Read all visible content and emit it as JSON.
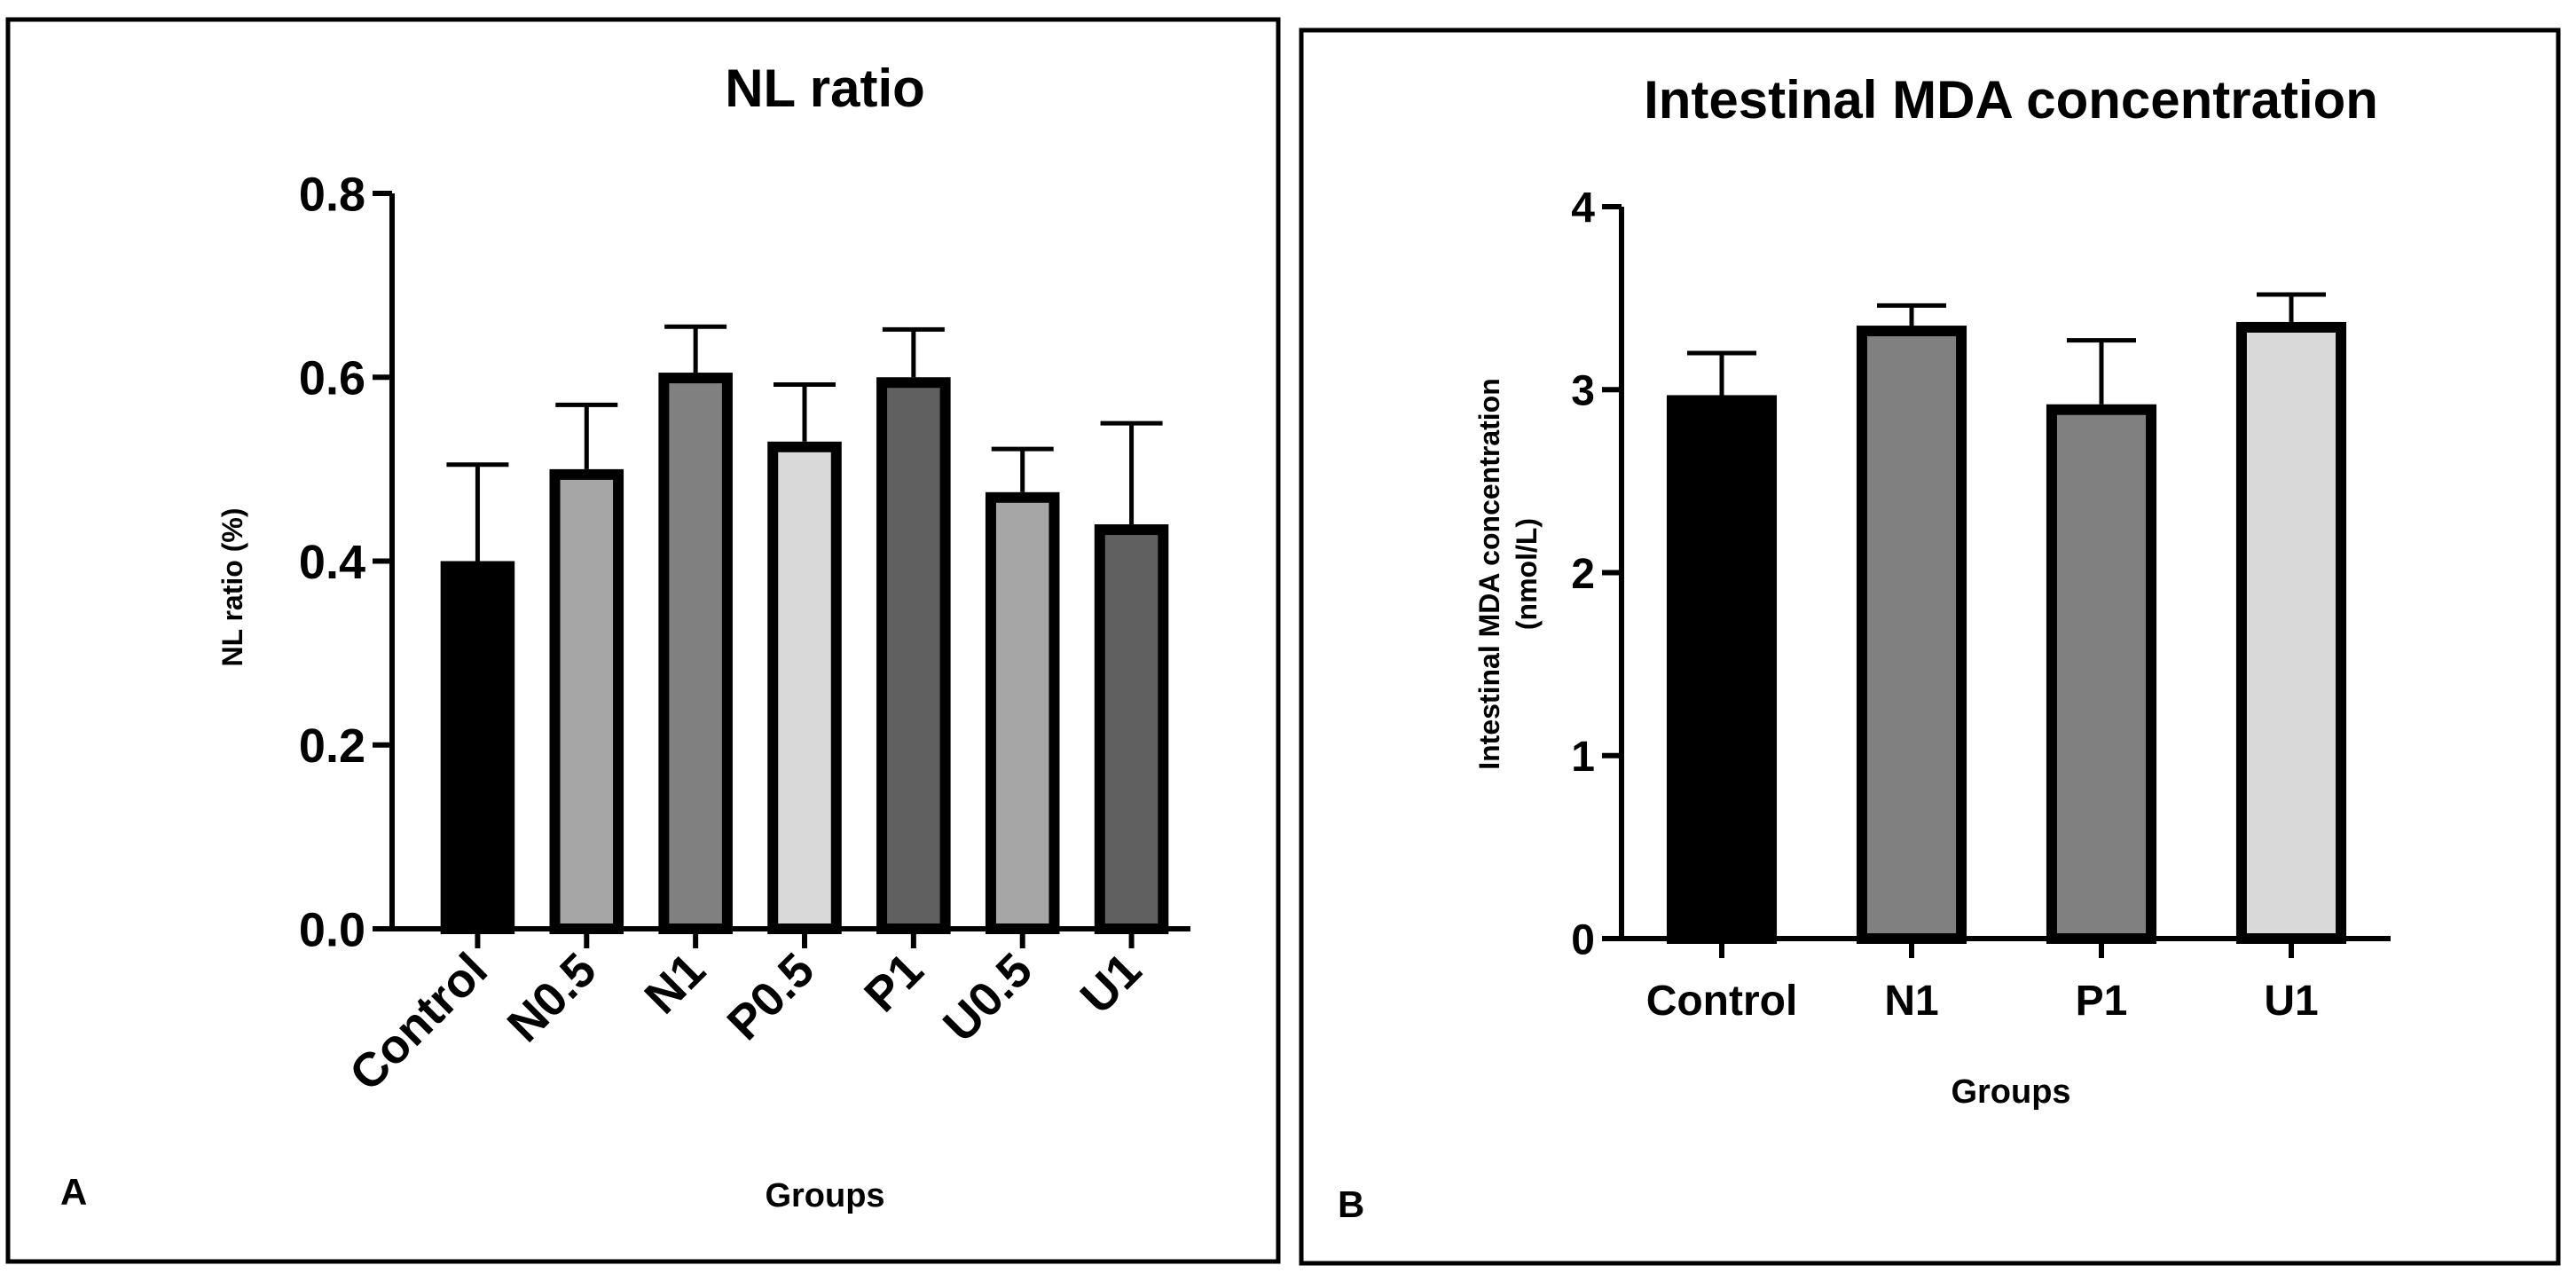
{
  "figure": {
    "panels": [
      {
        "label": "A"
      },
      {
        "label": "B"
      }
    ]
  },
  "chart_data": [
    {
      "type": "bar",
      "title": "NL ratio",
      "xlabel": "Groups",
      "ylabel": "NL ratio (%)",
      "ylim": [
        0,
        0.8
      ],
      "yticks": [
        "0.0",
        "0.2",
        "0.4",
        "0.6",
        "0.8"
      ],
      "categories": [
        "Control",
        "N0.5",
        "N1",
        "P0.5",
        "P1",
        "U0.5",
        "U1"
      ],
      "values": [
        0.4,
        0.5,
        0.605,
        0.53,
        0.6,
        0.475,
        0.44
      ],
      "error_upper": [
        0.505,
        0.57,
        0.655,
        0.592,
        0.652,
        0.522,
        0.55
      ],
      "bar_colors": [
        "#000000",
        "#a6a6a6",
        "#808080",
        "#d9d9d9",
        "#606060",
        "#a6a6a6",
        "#606060"
      ],
      "grid": false
    },
    {
      "type": "bar",
      "title": "Intestinal MDA concentration",
      "xlabel": "Groups",
      "ylabel": "Intestinal MDA concentration",
      "ylabel_unit": "(nmol/L)",
      "ylim": [
        0,
        4
      ],
      "yticks": [
        "0",
        "1",
        "2",
        "3",
        "4"
      ],
      "categories": [
        "Control",
        "N1",
        "P1",
        "U1"
      ],
      "values": [
        2.97,
        3.35,
        2.92,
        3.37
      ],
      "error_upper": [
        3.2,
        3.46,
        3.27,
        3.52
      ],
      "bar_colors": [
        "#000000",
        "#808080",
        "#808080",
        "#d9d9d9"
      ],
      "grid": false
    }
  ]
}
